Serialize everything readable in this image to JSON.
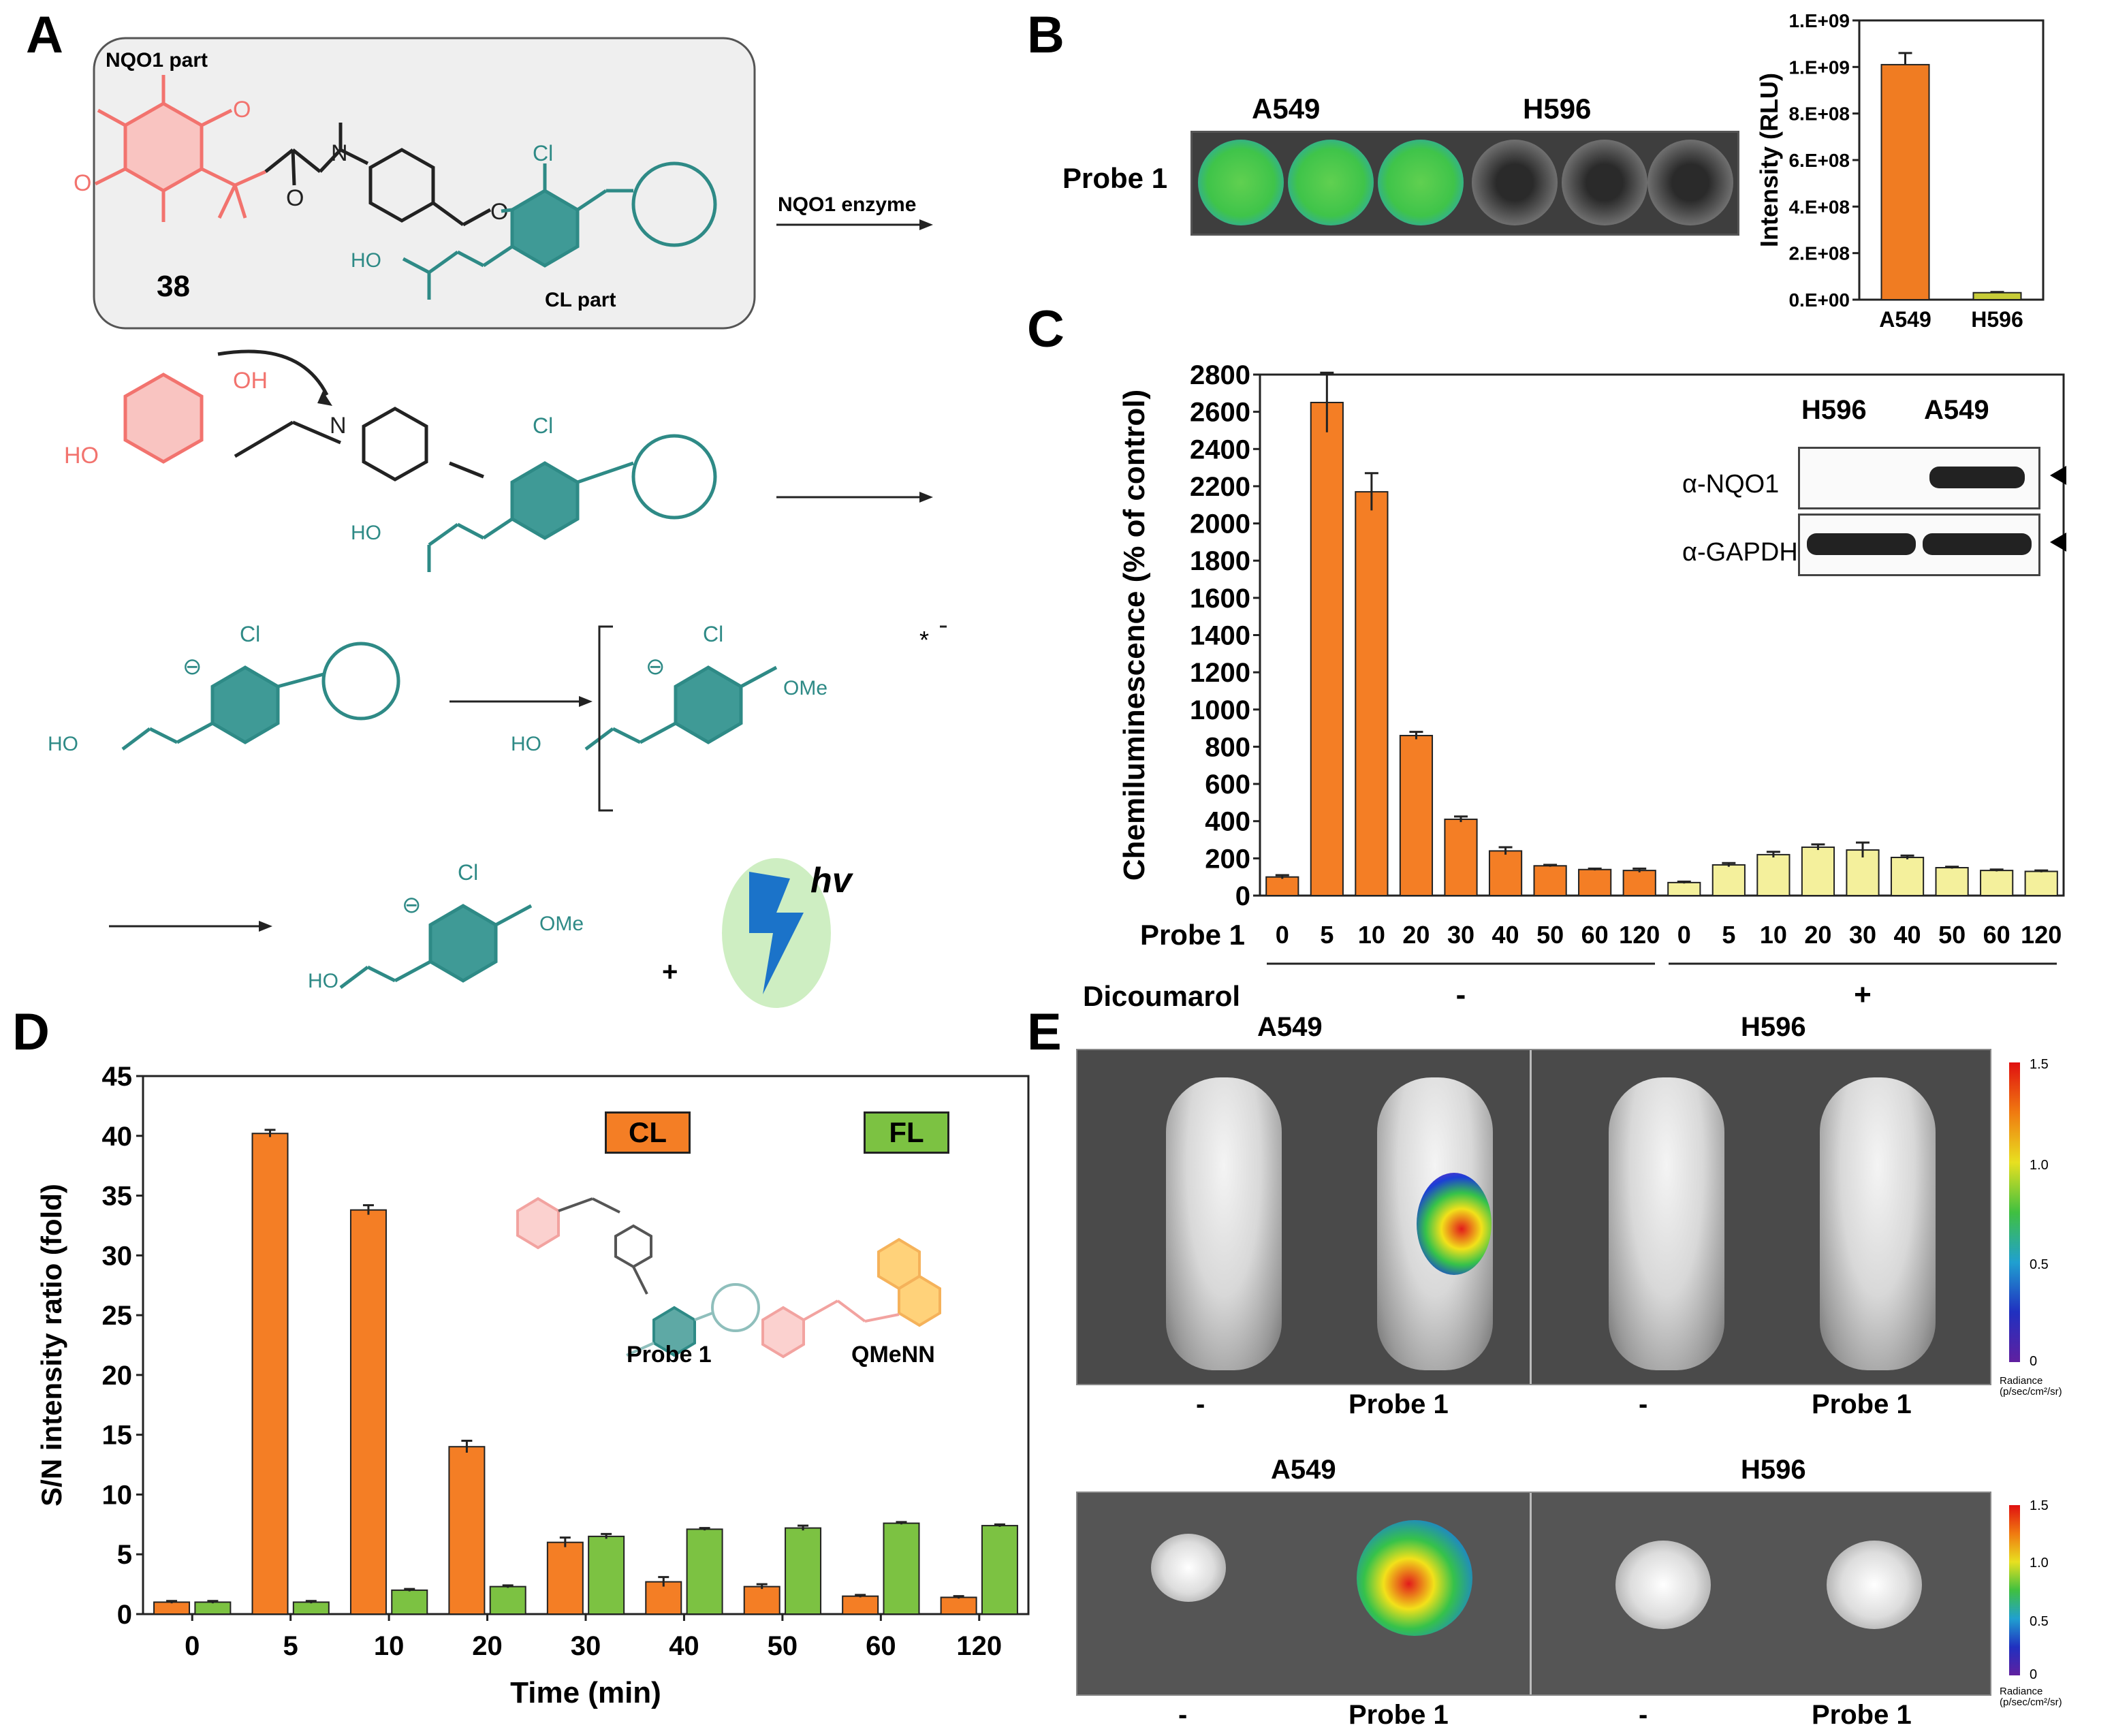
{
  "panel_labels": {
    "a": "A",
    "b": "B",
    "c": "C",
    "d": "D",
    "e": "E"
  },
  "panel_a": {
    "nqo1_part": "NQO1 part",
    "compound": "38",
    "cl_part": "CL part",
    "arrow1": "NQO1 enzyme",
    "cl": "Cl",
    "oh": "OH",
    "ho": "HO",
    "n": "N",
    "ome": "OMe",
    "star": "*",
    "hv": "hv",
    "plus": "+"
  },
  "panel_b": {
    "well_labels": [
      "A549",
      "H596"
    ],
    "row_label": "Probe 1",
    "colors": {
      "a549": "#f07c22",
      "h596": "#c7cc38"
    }
  },
  "panel_c": {
    "inset_labels": [
      "H596",
      "A549"
    ],
    "blot_rows": [
      "α-NQO1",
      "α-GAPDH"
    ],
    "probe_label": "Probe 1",
    "inhibitor_label": "Dicoumarol",
    "groups": [
      "-",
      "+"
    ],
    "colors": {
      "minus": "#f47e25",
      "plus": "#f4f09c"
    }
  },
  "panel_d": {
    "legend": [
      "CL",
      "FL"
    ],
    "struct_labels": [
      "Probe 1",
      "QMeNN"
    ],
    "colors": {
      "cl": "#f47e25",
      "fl": "#7cc242"
    }
  },
  "panel_e": {
    "top_headers": [
      "A549",
      "H596"
    ],
    "bottom_headers": [
      "A549",
      "H596"
    ],
    "conditions": [
      "-",
      "Probe 1",
      "-",
      "Probe 1"
    ],
    "scale_ticks": [
      "1.5",
      "1.0",
      "0.5",
      "0"
    ],
    "scale_title": "Radiance (p/sec/cm²/sr)"
  },
  "chart_data": [
    {
      "id": "B",
      "type": "bar",
      "categories": [
        "A549",
        "H596"
      ],
      "values": [
        1010000000,
        30000000
      ],
      "errors": [
        50000000,
        3000000
      ],
      "ylabel": "Intensity (RLU)",
      "ylim": [
        0,
        1200000000
      ],
      "yticks": [
        0,
        200000000,
        400000000,
        600000000,
        800000000,
        1000000000,
        1200000000
      ],
      "ytick_labels": [
        "0.E+00",
        "2.E+08",
        "4.E+08",
        "6.E+08",
        "8.E+08",
        "1.E+09",
        "1.E+09"
      ]
    },
    {
      "id": "C",
      "type": "bar",
      "xlabel": "Probe 1",
      "ylabel": "Chemiluminescence (% of control)",
      "ylim": [
        0,
        2800
      ],
      "yticks": [
        0,
        200,
        400,
        600,
        800,
        1000,
        1200,
        1400,
        1600,
        1800,
        2000,
        2200,
        2400,
        2600,
        2800
      ],
      "categories": [
        "0",
        "5",
        "10",
        "20",
        "30",
        "40",
        "50",
        "60",
        "120"
      ],
      "series": [
        {
          "name": "Dicoumarol -",
          "values": [
            100,
            2650,
            2170,
            860,
            410,
            240,
            160,
            140,
            135
          ],
          "errors": [
            10,
            160,
            100,
            20,
            15,
            20,
            5,
            5,
            10
          ]
        },
        {
          "name": "Dicoumarol +",
          "values": [
            70,
            165,
            220,
            260,
            245,
            205,
            150,
            135,
            130
          ],
          "errors": [
            5,
            10,
            15,
            15,
            40,
            10,
            5,
            5,
            5
          ]
        }
      ]
    },
    {
      "id": "D",
      "type": "bar",
      "xlabel": "Time (min)",
      "ylabel": "S/N intensity ratio (fold)",
      "ylim": [
        0,
        45
      ],
      "yticks": [
        0,
        5,
        10,
        15,
        20,
        25,
        30,
        35,
        40,
        45
      ],
      "categories": [
        "0",
        "5",
        "10",
        "20",
        "30",
        "40",
        "50",
        "60",
        "120"
      ],
      "series": [
        {
          "name": "CL",
          "values": [
            1,
            40.2,
            33.8,
            14,
            6,
            2.7,
            2.3,
            1.5,
            1.4
          ],
          "errors": [
            0.1,
            0.3,
            0.4,
            0.5,
            0.4,
            0.4,
            0.2,
            0.1,
            0.1
          ]
        },
        {
          "name": "FL",
          "values": [
            1,
            1,
            2,
            2.3,
            6.5,
            7.1,
            7.2,
            7.6,
            7.4
          ],
          "errors": [
            0.1,
            0.1,
            0.1,
            0.1,
            0.2,
            0.1,
            0.2,
            0.1,
            0.1
          ]
        }
      ]
    }
  ]
}
